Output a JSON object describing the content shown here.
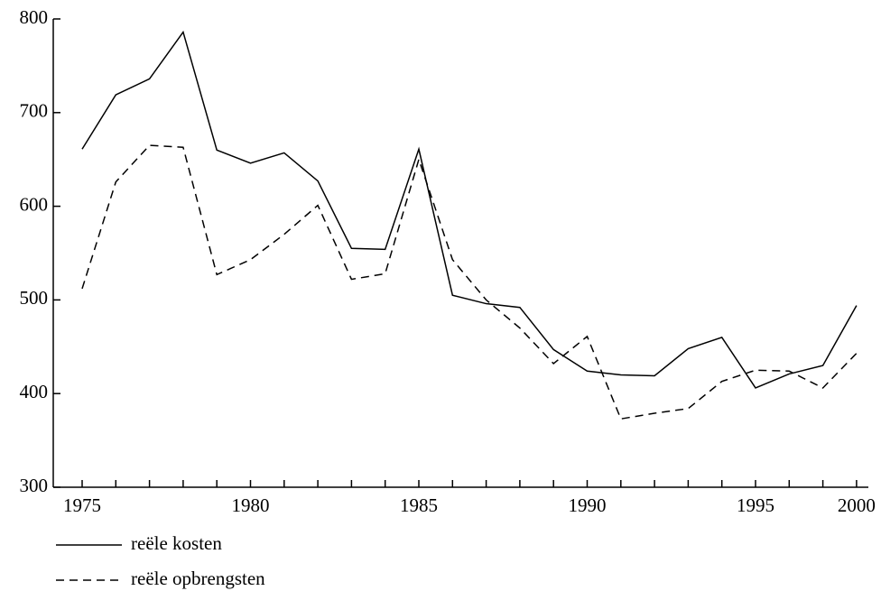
{
  "chart_data": {
    "type": "line",
    "categories": [
      "1975",
      null,
      null,
      null,
      null,
      "1980",
      null,
      null,
      null,
      null,
      "1985",
      null,
      null,
      null,
      null,
      "1990",
      null,
      null,
      null,
      null,
      "1995",
      null,
      null,
      "2000"
    ],
    "series": [
      {
        "name": "reële kosten",
        "color": "#000000",
        "dash": "solid",
        "values": [
          661,
          719,
          736,
          786,
          660,
          646,
          657,
          627,
          555,
          554,
          661,
          505,
          496,
          492,
          447,
          424,
          420,
          419,
          448,
          460,
          406,
          421,
          430,
          494
        ]
      },
      {
        "name": "reële opbrengsten",
        "color": "#000000",
        "dash": "dashed",
        "values": [
          512,
          626,
          665,
          663,
          527,
          543,
          570,
          601,
          522,
          528,
          650,
          543,
          500,
          470,
          432,
          461,
          373,
          379,
          384,
          413,
          425,
          424,
          406,
          443
        ]
      }
    ],
    "ylim": [
      300,
      800
    ],
    "yticks": [
      300,
      400,
      500,
      600,
      700,
      800
    ]
  }
}
